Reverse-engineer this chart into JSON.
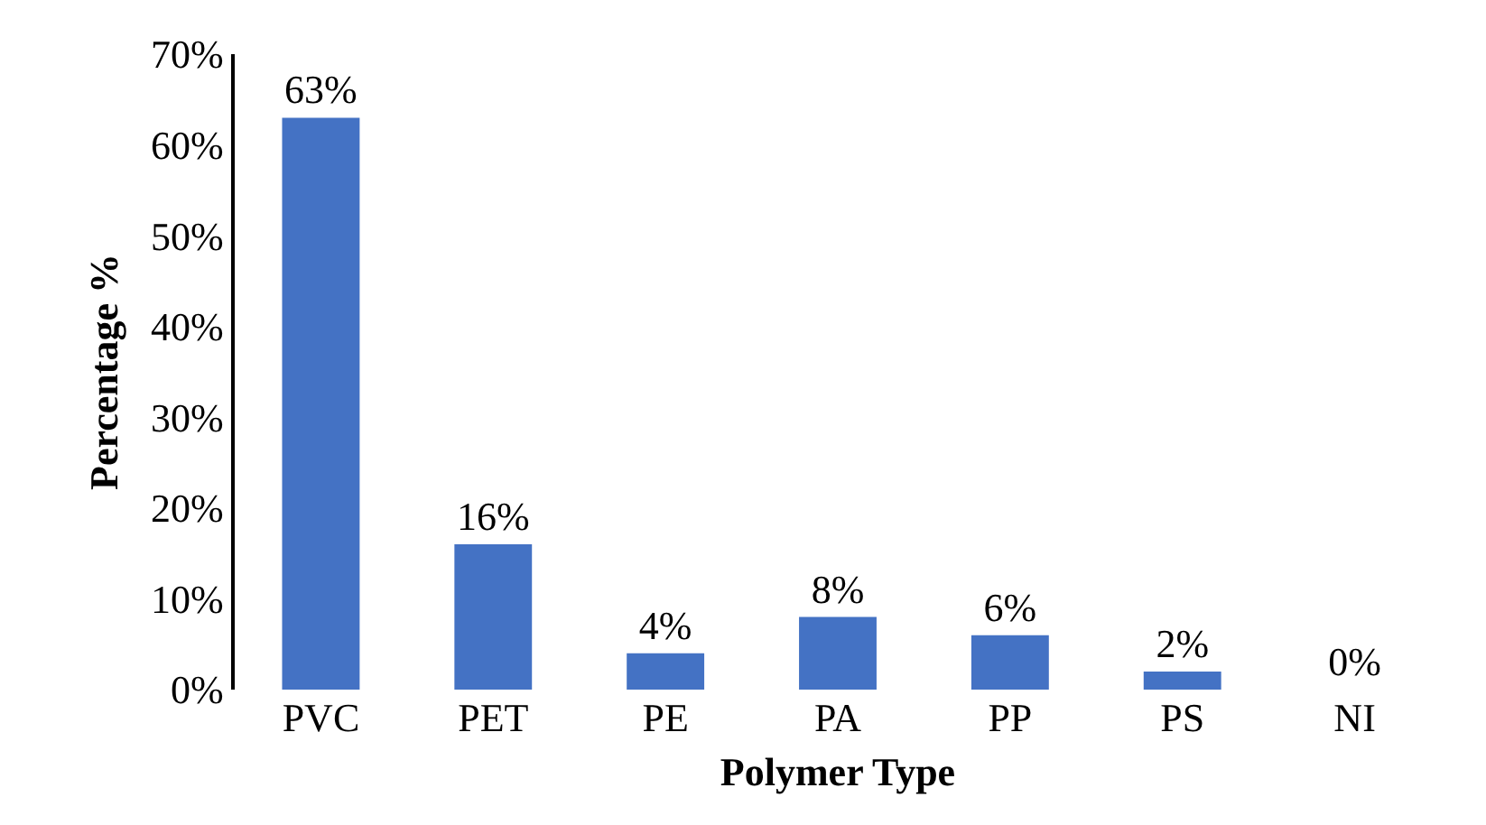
{
  "chart_data": {
    "type": "bar",
    "xlabel": "Polymer Type",
    "ylabel": "Percentage %",
    "categories": [
      "PVC",
      "PET",
      "PE",
      "PA",
      "PP",
      "PS",
      "NI"
    ],
    "values": [
      63,
      16,
      4,
      8,
      6,
      2,
      0
    ],
    "value_labels": [
      "63%",
      "16%",
      "4%",
      "8%",
      "6%",
      "2%",
      "0%"
    ],
    "color": "#4472c4",
    "ylim": [
      0,
      70
    ],
    "yticks": [
      {
        "value": 0,
        "label": "0%"
      },
      {
        "value": 10,
        "label": "10%"
      },
      {
        "value": 20,
        "label": "20%"
      },
      {
        "value": 30,
        "label": "30%"
      },
      {
        "value": 40,
        "label": "40%"
      },
      {
        "value": 50,
        "label": "50%"
      },
      {
        "value": 60,
        "label": "60%"
      },
      {
        "value": 70,
        "label": "70%"
      }
    ],
    "grid": false
  }
}
